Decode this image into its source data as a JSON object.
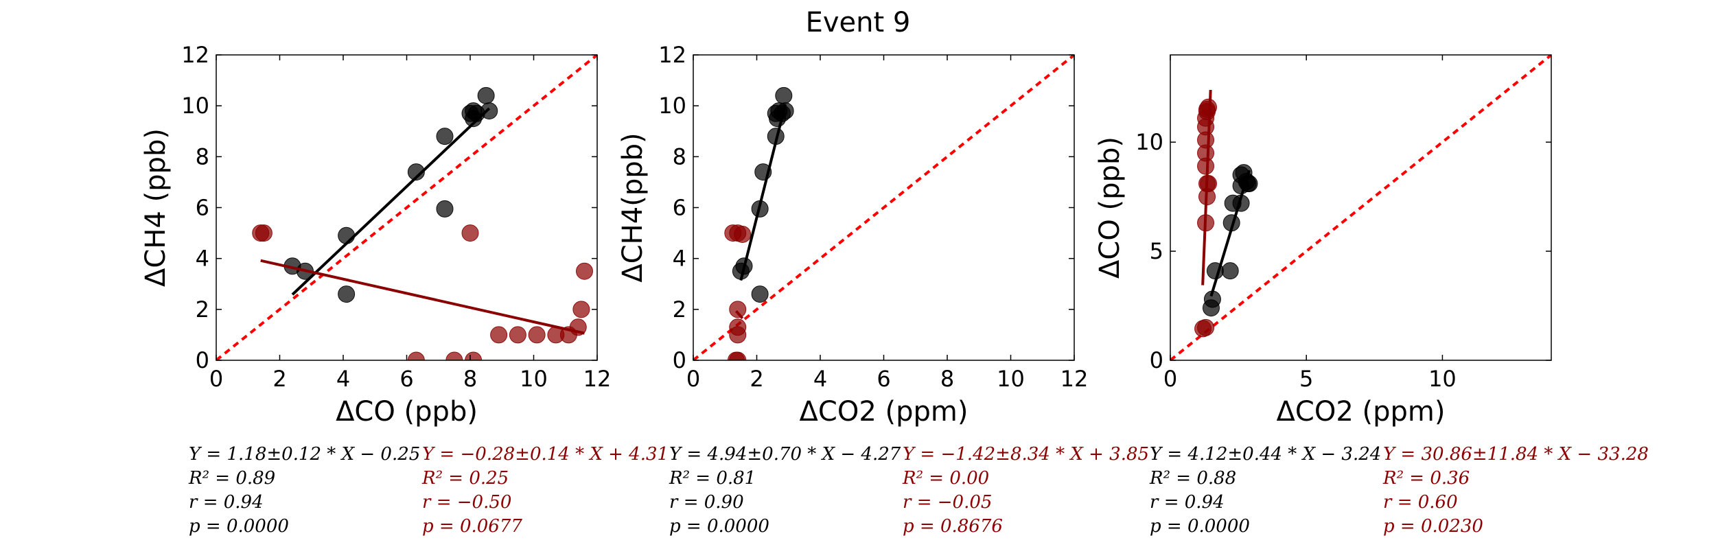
{
  "figure": {
    "title": "Event 9"
  },
  "chart_data": [
    {
      "type": "scatter",
      "xlabel": "ΔCO (ppb)",
      "ylabel": "ΔCH4 (ppb)",
      "xlim": [
        0,
        12
      ],
      "ylim": [
        0,
        12
      ],
      "xticks": [
        0,
        2,
        4,
        6,
        8,
        10,
        12
      ],
      "yticks": [
        0,
        2,
        4,
        6,
        8,
        10,
        12
      ],
      "one_to_one_line": true,
      "series": [
        {
          "color": "#000000",
          "points": [
            [
              2.4,
              3.7
            ],
            [
              2.8,
              3.5
            ],
            [
              4.1,
              4.9
            ],
            [
              4.1,
              2.6
            ],
            [
              6.3,
              7.4
            ],
            [
              7.2,
              8.8
            ],
            [
              7.2,
              5.95
            ],
            [
              8.0,
              9.7
            ],
            [
              8.1,
              9.8
            ],
            [
              8.2,
              9.7
            ],
            [
              8.1,
              9.5
            ],
            [
              8.5,
              10.4
            ],
            [
              8.6,
              9.8
            ]
          ],
          "fit": {
            "slope": 1.18,
            "intercept": -0.25,
            "x_range": [
              2.4,
              8.6
            ]
          },
          "stats": [
            "Y = 1.18±0.12 * X − 0.25",
            "R² = 0.89",
            "r = 0.94",
            "p = 0.0000"
          ]
        },
        {
          "color": "#8b0000",
          "points": [
            [
              1.4,
              5.0
            ],
            [
              1.5,
              5.0
            ],
            [
              6.3,
              0.0
            ],
            [
              7.5,
              0.0
            ],
            [
              8.0,
              5.0
            ],
            [
              8.1,
              0.0
            ],
            [
              8.9,
              1.0
            ],
            [
              9.5,
              1.0
            ],
            [
              10.1,
              1.0
            ],
            [
              10.7,
              1.0
            ],
            [
              11.1,
              1.0
            ],
            [
              11.4,
              1.3
            ],
            [
              11.5,
              2.0
            ],
            [
              11.6,
              3.5
            ]
          ],
          "fit": {
            "slope": -0.28,
            "intercept": 4.31,
            "x_range": [
              1.4,
              11.6
            ]
          },
          "stats": [
            "Y = −0.28±0.14 * X + 4.31",
            "R² = 0.25",
            "r = −0.50",
            "p = 0.0677"
          ]
        }
      ]
    },
    {
      "type": "scatter",
      "xlabel": "ΔCO2 (ppm)",
      "ylabel": "ΔCH4(ppb)",
      "xlim": [
        0,
        12
      ],
      "ylim": [
        0,
        12
      ],
      "xticks": [
        0,
        2,
        4,
        6,
        8,
        10,
        12
      ],
      "yticks": [
        0,
        2,
        4,
        6,
        8,
        10,
        12
      ],
      "one_to_one_line": true,
      "series": [
        {
          "color": "#000000",
          "points": [
            [
              1.5,
              3.5
            ],
            [
              1.6,
              3.7
            ],
            [
              2.1,
              5.95
            ],
            [
              2.2,
              7.4
            ],
            [
              2.1,
              2.6
            ],
            [
              2.6,
              8.8
            ],
            [
              2.6,
              9.7
            ],
            [
              2.7,
              9.8
            ],
            [
              2.65,
              9.5
            ],
            [
              2.8,
              9.7
            ],
            [
              2.85,
              10.4
            ],
            [
              2.9,
              9.8
            ]
          ],
          "fit": {
            "slope": 4.94,
            "intercept": -4.27,
            "x_range": [
              1.5,
              2.9
            ]
          },
          "stats": [
            "Y = 4.94±0.70 * X − 4.27",
            "R² = 0.81",
            "r = 0.90",
            "p = 0.0000"
          ]
        },
        {
          "color": "#8b0000",
          "points": [
            [
              1.25,
              5.0
            ],
            [
              1.4,
              5.0
            ],
            [
              1.55,
              4.95
            ],
            [
              1.4,
              2.0
            ],
            [
              1.4,
              1.3
            ],
            [
              1.4,
              1.0
            ],
            [
              1.4,
              0.0
            ],
            [
              1.35,
              0.0
            ]
          ],
          "fit": {
            "slope": -1.42,
            "intercept": 3.85,
            "x_range": [
              1.35,
              1.55
            ]
          },
          "stats": [
            "Y = −1.42±8.34 * X + 3.85",
            "R² = 0.00",
            "r = −0.05",
            "p = 0.8676"
          ]
        }
      ]
    },
    {
      "type": "scatter",
      "xlabel": "ΔCO2 (ppm)",
      "ylabel": "ΔCO (ppb)",
      "xlim": [
        0,
        14
      ],
      "ylim": [
        0,
        14
      ],
      "xticks": [
        0,
        5,
        10
      ],
      "yticks": [
        0,
        5,
        10
      ],
      "one_to_one_line": true,
      "series": [
        {
          "color": "#000000",
          "points": [
            [
              1.5,
              2.4
            ],
            [
              1.55,
              2.8
            ],
            [
              1.65,
              4.1
            ],
            [
              2.2,
              4.1
            ],
            [
              2.25,
              6.3
            ],
            [
              2.3,
              7.2
            ],
            [
              2.6,
              7.2
            ],
            [
              2.6,
              8.0
            ],
            [
              2.6,
              8.5
            ],
            [
              2.7,
              8.6
            ],
            [
              2.8,
              8.2
            ],
            [
              2.85,
              8.1
            ],
            [
              2.9,
              8.1
            ]
          ],
          "fit": {
            "slope": 4.12,
            "intercept": -3.24,
            "x_range": [
              1.5,
              2.9
            ]
          },
          "stats": [
            "Y = 4.12±0.44 * X − 3.24",
            "R² = 0.88",
            "r = 0.94",
            "p = 0.0000"
          ]
        },
        {
          "color": "#8b0000",
          "points": [
            [
              1.2,
              1.45
            ],
            [
              1.3,
              1.5
            ],
            [
              1.3,
              6.3
            ],
            [
              1.35,
              7.5
            ],
            [
              1.35,
              8.1
            ],
            [
              1.4,
              8.1
            ],
            [
              1.3,
              8.9
            ],
            [
              1.3,
              9.5
            ],
            [
              1.3,
              10.1
            ],
            [
              1.3,
              10.7
            ],
            [
              1.3,
              11.1
            ],
            [
              1.35,
              11.4
            ],
            [
              1.35,
              11.5
            ],
            [
              1.4,
              11.6
            ]
          ],
          "fit": {
            "slope": 30.86,
            "intercept": -33.28,
            "x_range": [
              1.19,
              1.48
            ]
          },
          "stats": [
            "Y = 30.86±11.84 * X − 33.28",
            "R² = 0.36",
            "r = 0.60",
            "p = 0.0230"
          ]
        }
      ]
    }
  ]
}
